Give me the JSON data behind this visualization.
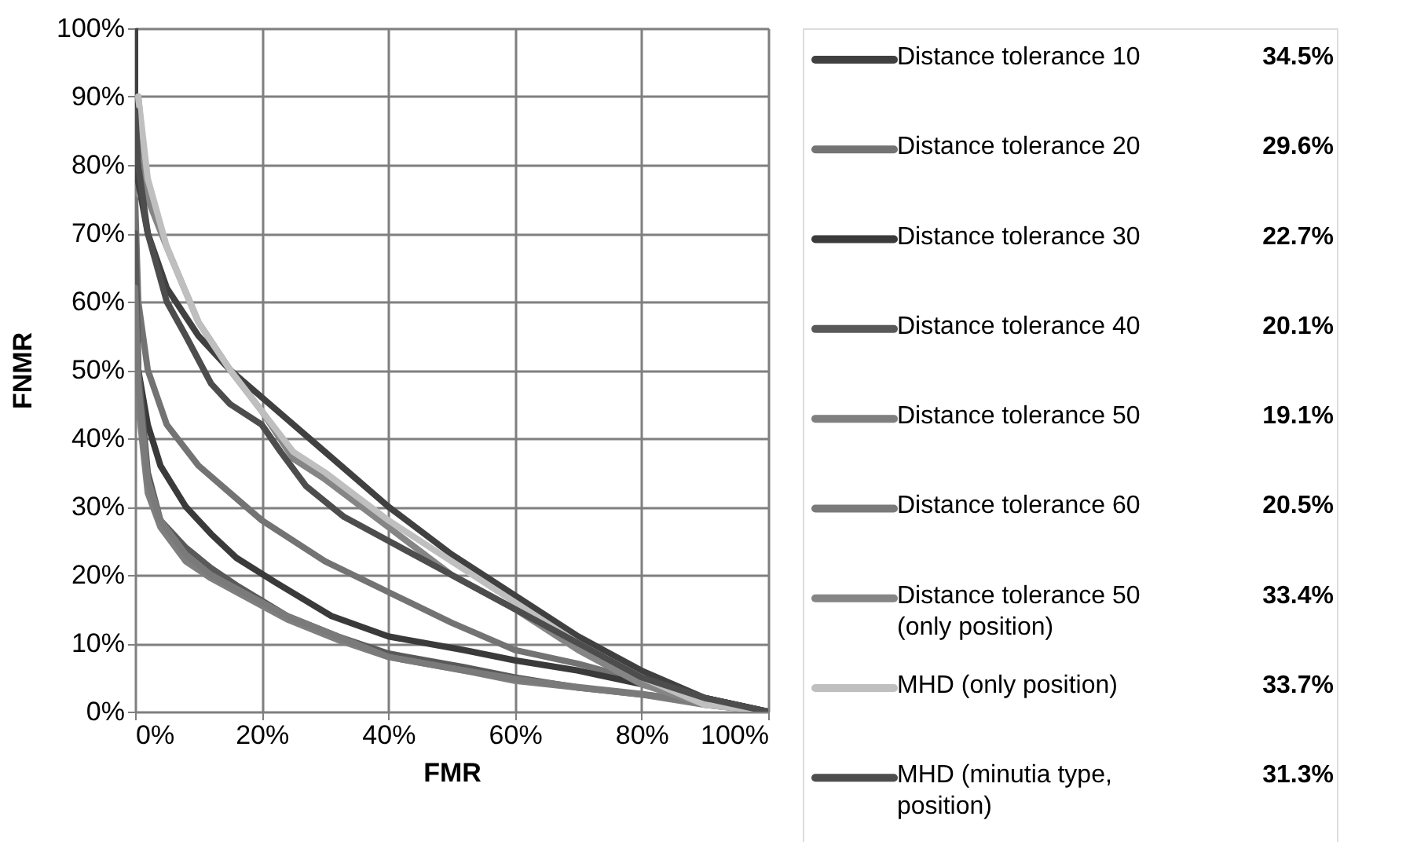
{
  "chart_data": {
    "type": "line",
    "xlabel": "FMR",
    "ylabel": "FNMR",
    "xlim": [
      0,
      100
    ],
    "ylim": [
      0,
      100
    ],
    "xticks": [
      {
        "value": 0,
        "label": "0%"
      },
      {
        "value": 20,
        "label": "20%"
      },
      {
        "value": 40,
        "label": "40%"
      },
      {
        "value": 60,
        "label": "60%"
      },
      {
        "value": 80,
        "label": "80%"
      },
      {
        "value": 100,
        "label": "100%"
      }
    ],
    "yticks": [
      {
        "value": 0,
        "label": "0%"
      },
      {
        "value": 10,
        "label": "10%"
      },
      {
        "value": 20,
        "label": "20%"
      },
      {
        "value": 30,
        "label": "30%"
      },
      {
        "value": 40,
        "label": "40%"
      },
      {
        "value": 50,
        "label": "50%"
      },
      {
        "value": 60,
        "label": "60%"
      },
      {
        "value": 70,
        "label": "70%"
      },
      {
        "value": 80,
        "label": "80%"
      },
      {
        "value": 90,
        "label": "90%"
      },
      {
        "value": 100,
        "label": "100%"
      }
    ],
    "grid": true,
    "legend": "right",
    "marker": "none",
    "line_style": "solid",
    "annotations": [
      "34.5%",
      "29.6%",
      "22.7%",
      "20.1%",
      "19.1%",
      "20.5%",
      "33.4%",
      "33.7%",
      "31.3%"
    ],
    "series": [
      {
        "name": "Distance tolerance 10",
        "color": "#404040",
        "x": [
          0,
          0,
          2,
          5,
          10,
          15,
          20,
          30,
          40,
          50,
          60,
          70,
          80,
          90,
          100
        ],
        "values": [
          100,
          80,
          70,
          62,
          55,
          50,
          46,
          38,
          30,
          23,
          17,
          11,
          6,
          2,
          0
        ]
      },
      {
        "name": "Distance tolerance 20",
        "color": "#737373",
        "x": [
          0,
          0.5,
          2,
          5,
          10,
          15,
          20,
          30,
          40,
          50,
          60,
          70,
          80,
          90,
          100
        ],
        "values": [
          75,
          60,
          50,
          42,
          36,
          32,
          28,
          22,
          17.5,
          13,
          9,
          7,
          4.5,
          2,
          0
        ]
      },
      {
        "name": "Distance tolerance 30",
        "color": "#3a3a3a",
        "x": [
          0,
          0.5,
          2,
          4,
          8,
          12,
          16,
          22,
          31,
          40,
          52,
          60,
          70,
          80,
          90,
          100
        ],
        "values": [
          65,
          50,
          42,
          36,
          30,
          26,
          22.5,
          19,
          14,
          11,
          9,
          7.5,
          6,
          4,
          2,
          0
        ]
      },
      {
        "name": "Distance tolerance 40",
        "color": "#595959",
        "x": [
          0,
          0.5,
          2,
          4,
          8,
          12,
          16,
          24,
          32,
          40,
          52,
          60,
          70,
          80,
          90,
          100
        ],
        "values": [
          70,
          50,
          35,
          28,
          24,
          21,
          18.5,
          14,
          11,
          8.5,
          6.5,
          5,
          3.5,
          2.5,
          1.5,
          0
        ]
      },
      {
        "name": "Distance tolerance 50",
        "color": "#7f7f7f",
        "x": [
          0,
          0.5,
          2,
          4,
          8,
          12,
          16,
          24,
          32,
          40,
          52,
          60,
          70,
          80,
          90,
          100
        ],
        "values": [
          60,
          45,
          32,
          27,
          22,
          19.5,
          17.5,
          13.5,
          10.5,
          8,
          6,
          4.5,
          3.5,
          2.5,
          1,
          0
        ]
      },
      {
        "name": "Distance tolerance 60",
        "color": "#7a7a7a",
        "x": [
          0,
          0.5,
          2,
          4,
          8,
          12,
          16,
          24,
          32,
          40,
          52,
          60,
          70,
          80,
          90,
          100
        ],
        "values": [
          62,
          48,
          34,
          28,
          23,
          20,
          18,
          14,
          11,
          8,
          6,
          4.8,
          3.6,
          2.6,
          1.3,
          0
        ]
      },
      {
        "name": "Distance tolerance 50 (only position)",
        "color": "#858585",
        "x": [
          0.5,
          2,
          5,
          10,
          15,
          20,
          25,
          30,
          40,
          50,
          60,
          70,
          80,
          90,
          100
        ],
        "values": [
          90,
          75,
          68,
          57,
          50,
          44,
          37,
          34,
          27,
          20,
          15,
          9,
          4,
          1,
          0
        ]
      },
      {
        "name": "MHD (only position)",
        "color": "#bfbfbf",
        "x": [
          0.5,
          2,
          5,
          10,
          15,
          20,
          25,
          30,
          40,
          50,
          60,
          70,
          80,
          90,
          100
        ],
        "values": [
          90,
          78,
          68,
          57,
          50,
          44,
          38,
          35,
          28,
          22,
          16,
          10,
          5,
          1,
          0
        ]
      },
      {
        "name": "MHD (minutia type, position)",
        "color": "#4d4d4d",
        "x": [
          0,
          0.5,
          2,
          5,
          8,
          12,
          15,
          20,
          23,
          27,
          33,
          40,
          50,
          60,
          70,
          80,
          90,
          100
        ],
        "values": [
          88,
          80,
          70,
          60,
          55,
          48,
          45,
          42,
          38,
          33,
          28.5,
          25,
          20,
          15,
          10,
          5,
          2,
          0
        ]
      }
    ]
  }
}
